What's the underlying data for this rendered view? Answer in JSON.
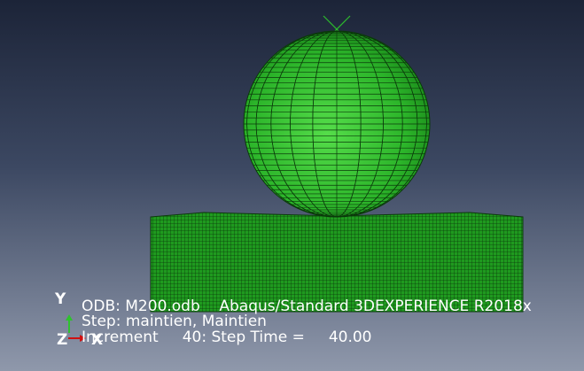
{
  "viewport": {
    "triad": {
      "y": "Y",
      "z": "Z",
      "x": "X"
    },
    "info": {
      "line1": "ODB: M200.odb    Abaqus/Standard 3DEXPERIENCE R2018x",
      "line2": "Step: maintien, Maintien",
      "line3": "Increment     40: Step Time =     40.00"
    }
  }
}
